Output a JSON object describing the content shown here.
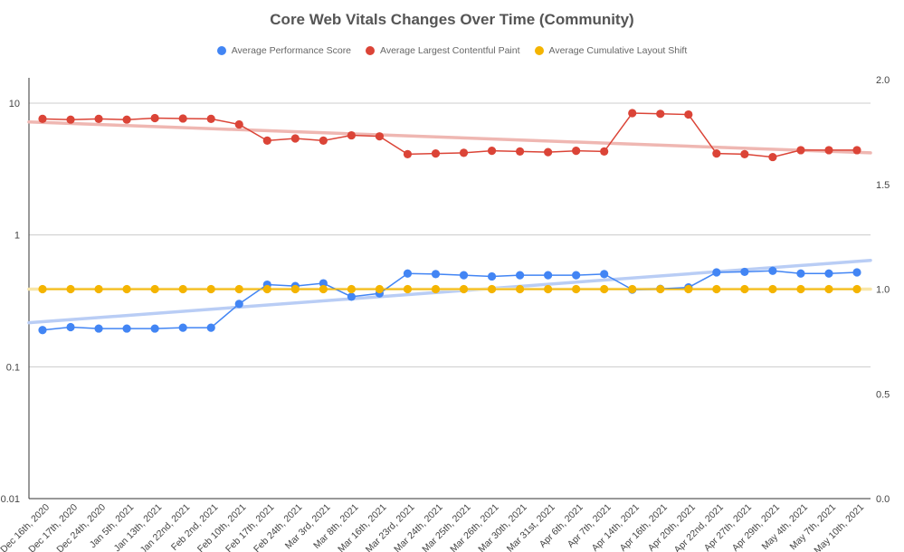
{
  "chart_data": {
    "type": "line",
    "title": "Core Web Vitals Changes Over Time (Community)",
    "legend_position": "top",
    "grid": true,
    "categories": [
      "Dec 16th, 2020",
      "Dec 17th, 2020",
      "Dec 24th, 2020",
      "Jan 5th, 2021",
      "Jan 13th, 2021",
      "Jan 22nd, 2021",
      "Feb 2nd, 2021",
      "Feb 10th, 2021",
      "Feb 17th, 2021",
      "Feb 24th, 2021",
      "Mar 3rd, 2021",
      "Mar 8th, 2021",
      "Mar 16th, 2021",
      "Mar 23rd, 2021",
      "Mar 24th, 2021",
      "Mar 25th, 2021",
      "Mar 26th, 2021",
      "Mar 30th, 2021",
      "Mar 31st, 2021",
      "Apr 6th, 2021",
      "Apr 7th, 2021",
      "Apr 14th, 2021",
      "Apr 16th, 2021",
      "Apr 20th, 2021",
      "Apr 22nd, 2021",
      "Apr 27th, 2021",
      "Apr 29th, 2021",
      "May 4th, 2021",
      "May 7th, 2021",
      "May 10th, 2021"
    ],
    "left_axis": {
      "scale": "log",
      "ylim": [
        0.01,
        10
      ],
      "ticks": [
        {
          "value": 10,
          "label": "10"
        },
        {
          "value": 1,
          "label": "1"
        },
        {
          "value": 0.1,
          "label": "0.1"
        },
        {
          "value": 0.01,
          "label": "0.01"
        }
      ]
    },
    "right_axis": {
      "scale": "linear",
      "ylim": [
        0,
        2
      ],
      "ticks": [
        {
          "value": 2,
          "label": "2.0"
        },
        {
          "value": 1.5,
          "label": "1.5"
        },
        {
          "value": 1,
          "label": "1.0"
        },
        {
          "value": 0.5,
          "label": "0.5"
        },
        {
          "value": 0,
          "label": "0.0"
        }
      ]
    },
    "series": [
      {
        "name": "Average Performance Score",
        "color": "#4285F4",
        "axis": "left",
        "trendline": true,
        "values": [
          0.19,
          0.2,
          0.195,
          0.195,
          0.195,
          0.198,
          0.198,
          0.3,
          0.42,
          0.41,
          0.43,
          0.34,
          0.36,
          0.51,
          0.505,
          0.495,
          0.485,
          0.495,
          0.495,
          0.495,
          0.505,
          0.385,
          0.39,
          0.4,
          0.52,
          0.525,
          0.535,
          0.51,
          0.51,
          0.52
        ]
      },
      {
        "name": "Average Largest Contentful Paint",
        "color": "#DB4437",
        "axis": "left",
        "trendline": true,
        "values": [
          7.6,
          7.5,
          7.6,
          7.5,
          7.7,
          7.65,
          7.6,
          6.9,
          5.2,
          5.4,
          5.2,
          5.7,
          5.6,
          4.1,
          4.15,
          4.2,
          4.35,
          4.3,
          4.25,
          4.35,
          4.3,
          8.4,
          8.3,
          8.2,
          4.15,
          4.1,
          3.9,
          4.4,
          4.4,
          4.4
        ]
      },
      {
        "name": "Average Cumulative Layout Shift",
        "color": "#F4B400",
        "axis": "right",
        "trendline": true,
        "values": [
          1,
          1,
          1,
          1,
          1,
          1,
          1,
          1,
          1,
          1,
          1,
          1,
          1,
          1,
          1,
          1,
          1,
          1,
          1,
          1,
          1,
          1,
          1,
          1,
          1,
          1,
          1,
          1,
          1,
          1
        ]
      }
    ]
  }
}
